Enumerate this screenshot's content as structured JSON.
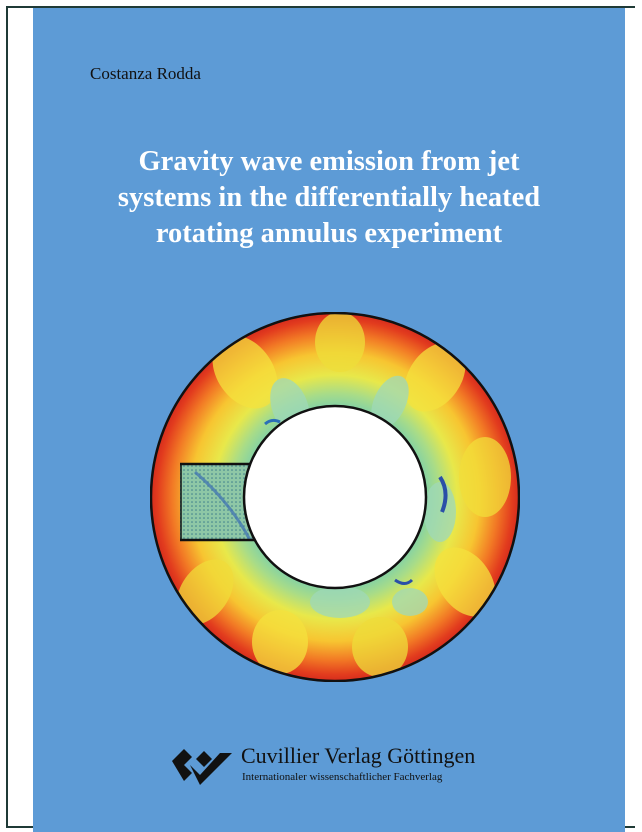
{
  "cover": {
    "author": "Costanza Rodda",
    "title_lines": [
      "Gravity wave emission from jet",
      "systems in the differentially heated",
      "rotating annulus experiment"
    ],
    "background_color": "#5d9bd6"
  },
  "figure": {
    "icon": "rotating-annulus-temperature-map"
  },
  "publisher": {
    "name": "Cuvillier Verlag Göttingen",
    "tagline": "Internationaler wissenschaftlicher Fachverlag",
    "logo_icon": "cuvillier-logo"
  }
}
